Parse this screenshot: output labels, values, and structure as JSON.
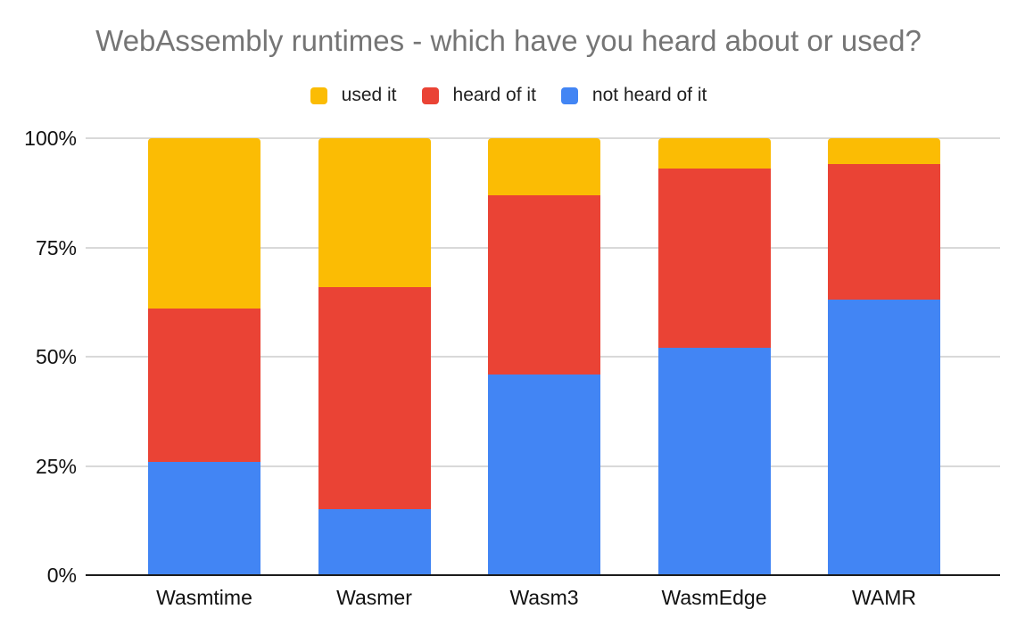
{
  "title": "WebAssembly runtimes - which have you heard about or used?",
  "legend": {
    "position": "top",
    "items": [
      {
        "label": "used it",
        "color": "#FBBC04"
      },
      {
        "label": "heard of it",
        "color": "#EA4335"
      },
      {
        "label": "not heard of it",
        "color": "#4285F4"
      }
    ]
  },
  "axes": {
    "y_ticks": [
      "100%",
      "75%",
      "50%",
      "25%",
      "0%"
    ],
    "x_labels": [
      "Wasmtime",
      "Wasmer",
      "Wasm3",
      "WasmEdge",
      "WAMR"
    ]
  },
  "colors": {
    "used_it": "#FBBC04",
    "heard_of_it": "#EA4335",
    "not_heard_of_it": "#4285F4",
    "title_text": "#757575",
    "axis_text": "#111111",
    "gridline": "#d9d9d9",
    "axis_line": "#1c1c1c",
    "background": "#ffffff"
  },
  "chart_data": {
    "type": "bar",
    "variant": "stacked-100-percent",
    "title": "WebAssembly runtimes - which have you heard about or used?",
    "categories": [
      "Wasmtime",
      "Wasmer",
      "Wasm3",
      "WasmEdge",
      "WAMR"
    ],
    "series": [
      {
        "name": "used it",
        "color": "#FBBC04",
        "values": [
          39,
          34,
          13,
          7,
          6
        ]
      },
      {
        "name": "heard of it",
        "color": "#EA4335",
        "values": [
          35,
          51,
          41,
          41,
          31
        ]
      },
      {
        "name": "not heard of it",
        "color": "#4285F4",
        "values": [
          26,
          15,
          46,
          52,
          63
        ]
      }
    ],
    "stack_order_bottom_to_top": [
      "not heard of it",
      "heard of it",
      "used it"
    ],
    "unit": "percent",
    "xlabel": "",
    "ylabel": "",
    "ylim": [
      0,
      100
    ],
    "y_tick_labels": [
      "0%",
      "25%",
      "50%",
      "75%",
      "100%"
    ],
    "grid": true,
    "legend_position": "top"
  }
}
